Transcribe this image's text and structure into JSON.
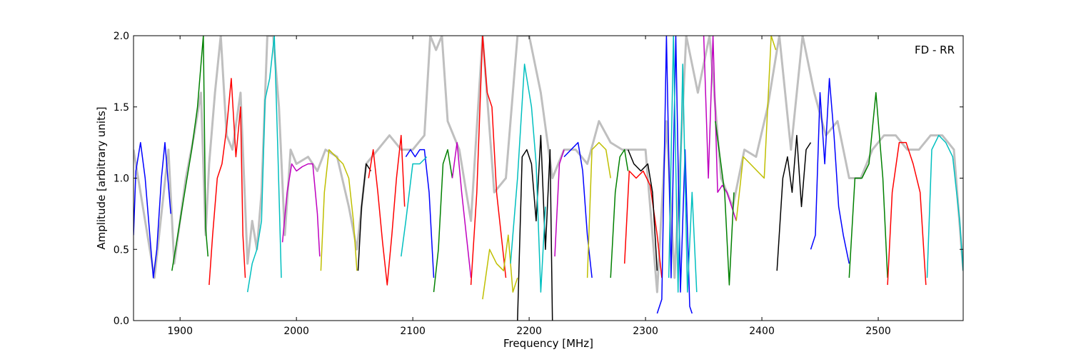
{
  "chart_data": {
    "type": "line",
    "title": "",
    "xlabel": "Frequency [MHz]",
    "ylabel": "Amplitude [arbitrary units]",
    "annotation": "FD - RR",
    "xlim": [
      1860,
      2573
    ],
    "ylim": [
      0.0,
      2.0
    ],
    "x_ticks": [
      1900,
      2000,
      2100,
      2200,
      2300,
      2400,
      2500
    ],
    "y_ticks": [
      0.0,
      0.5,
      1.0,
      1.5,
      2.0
    ],
    "y_tick_labels": [
      "0.0",
      "0.5",
      "1.0",
      "1.5",
      "2.0"
    ],
    "grid": false,
    "legend": "none",
    "background_series": {
      "color": "#bfbfbf",
      "x": [
        1860,
        1878,
        1890,
        1895,
        1905,
        1912,
        1918,
        1922,
        1925,
        1930,
        1935,
        1940,
        1945,
        1952,
        1958,
        1962,
        1966,
        1970,
        1975,
        1980,
        1985,
        1990,
        1995,
        2000,
        2010,
        2018,
        2025,
        2035,
        2045,
        2052,
        2060,
        2070,
        2080,
        2090,
        2100,
        2110,
        2115,
        2120,
        2125,
        2130,
        2140,
        2150,
        2160,
        2170,
        2180,
        2190,
        2200,
        2210,
        2220,
        2230,
        2240,
        2250,
        2260,
        2270,
        2280,
        2290,
        2300,
        2310,
        2318,
        2325,
        2335,
        2345,
        2355,
        2365,
        2375,
        2385,
        2395,
        2405,
        2415,
        2425,
        2435,
        2445,
        2455,
        2465,
        2475,
        2485,
        2495,
        2505,
        2515,
        2525,
        2535,
        2545,
        2555,
        2565,
        2573
      ],
      "y": [
        1.2,
        0.3,
        1.2,
        0.4,
        1.0,
        1.3,
        1.6,
        0.6,
        1.1,
        1.6,
        2.0,
        1.3,
        1.2,
        1.6,
        0.4,
        0.7,
        0.5,
        0.9,
        2.0,
        2.0,
        1.5,
        0.6,
        1.2,
        1.1,
        1.15,
        1.05,
        1.2,
        1.15,
        0.8,
        0.5,
        1.1,
        1.2,
        1.3,
        1.2,
        1.2,
        1.3,
        2.0,
        1.9,
        2.0,
        1.4,
        1.2,
        0.7,
        2.0,
        0.9,
        1.0,
        2.0,
        2.0,
        1.6,
        1.0,
        1.2,
        1.2,
        1.1,
        1.4,
        1.25,
        1.2,
        1.2,
        1.2,
        0.2,
        1.4,
        0.3,
        2.0,
        1.6,
        2.0,
        1.0,
        0.8,
        1.2,
        1.15,
        1.5,
        2.0,
        1.2,
        2.0,
        1.6,
        1.3,
        1.4,
        1.0,
        1.0,
        1.2,
        1.3,
        1.3,
        1.2,
        1.2,
        1.3,
        1.3,
        1.2,
        0.35
      ]
    },
    "series": [
      {
        "color": "#0000ff",
        "x": [
          1860,
          1862,
          1866,
          1870,
          1874,
          1877,
          1880,
          1884,
          1887,
          1890,
          1892
        ],
        "y": [
          0.6,
          1.05,
          1.25,
          1.0,
          0.6,
          0.3,
          0.5,
          1.0,
          1.25,
          0.95,
          0.75
        ]
      },
      {
        "color": "#008000",
        "x": [
          1893,
          1896,
          1900,
          1905,
          1910,
          1915,
          1918,
          1920,
          1922,
          1924
        ],
        "y": [
          0.35,
          0.5,
          0.7,
          0.95,
          1.2,
          1.5,
          1.8,
          2.0,
          0.65,
          0.45
        ]
      },
      {
        "color": "#ff0000",
        "x": [
          1925,
          1928,
          1932,
          1936,
          1940,
          1944,
          1948,
          1952,
          1954,
          1956
        ],
        "y": [
          0.25,
          0.6,
          1.0,
          1.1,
          1.35,
          1.7,
          1.15,
          1.5,
          0.6,
          0.3
        ]
      },
      {
        "color": "#00bfbf",
        "x": [
          1958,
          1962,
          1966,
          1970,
          1973,
          1977,
          1981,
          1984,
          1987
        ],
        "y": [
          0.2,
          0.4,
          0.5,
          0.7,
          1.55,
          1.7,
          2.0,
          1.2,
          0.3
        ]
      },
      {
        "color": "#bf00bf",
        "x": [
          1988,
          1992,
          1996,
          2000,
          2005,
          2010,
          2014,
          2018,
          2020
        ],
        "y": [
          0.55,
          0.9,
          1.1,
          1.05,
          1.08,
          1.1,
          1.1,
          0.75,
          0.45
        ]
      },
      {
        "color": "#bfbf00",
        "x": [
          2021,
          2024,
          2028,
          2034,
          2040,
          2045,
          2049,
          2052
        ],
        "y": [
          0.35,
          0.9,
          1.2,
          1.15,
          1.1,
          1.0,
          0.7,
          0.35
        ]
      },
      {
        "color": "#000000",
        "x": [
          2053,
          2056,
          2060,
          2064
        ],
        "y": [
          0.35,
          0.8,
          1.1,
          1.05
        ]
      },
      {
        "color": "#ff0000",
        "x": [
          2062,
          2066,
          2070,
          2074,
          2078,
          2082,
          2086,
          2090,
          2093
        ],
        "y": [
          1.0,
          1.2,
          0.9,
          0.55,
          0.25,
          0.6,
          1.0,
          1.3,
          0.8
        ]
      },
      {
        "color": "#0000ff",
        "x": [
          2094,
          2098,
          2102,
          2106,
          2110,
          2114,
          2118
        ],
        "y": [
          1.15,
          1.2,
          1.15,
          1.2,
          1.2,
          0.9,
          0.3
        ]
      },
      {
        "color": "#00bfbf",
        "x": [
          2090,
          2094,
          2100,
          2106,
          2112
        ],
        "y": [
          0.45,
          0.7,
          1.1,
          1.1,
          1.15
        ]
      },
      {
        "color": "#008000",
        "x": [
          2118,
          2122,
          2126,
          2130,
          2134
        ],
        "y": [
          0.2,
          0.5,
          1.1,
          1.2,
          1.0
        ]
      },
      {
        "color": "#bf00bf",
        "x": [
          2134,
          2138,
          2142,
          2146,
          2150
        ],
        "y": [
          1.0,
          1.25,
          0.9,
          0.6,
          0.3
        ]
      },
      {
        "color": "#ff0000",
        "x": [
          2150,
          2155,
          2160,
          2164,
          2168,
          2172,
          2176,
          2180
        ],
        "y": [
          0.25,
          0.9,
          2.0,
          1.6,
          1.5,
          0.9,
          0.6,
          0.3
        ]
      },
      {
        "color": "#bfbf00",
        "x": [
          2160,
          2166,
          2172,
          2178,
          2182,
          2186,
          2190
        ],
        "y": [
          0.15,
          0.5,
          0.4,
          0.35,
          0.6,
          0.2,
          0.3
        ]
      },
      {
        "color": "#000000",
        "x": [
          2190,
          2194,
          2198,
          2202,
          2206,
          2210,
          2214,
          2218,
          2220
        ],
        "y": [
          0.0,
          1.15,
          1.2,
          1.1,
          0.7,
          1.3,
          0.5,
          1.2,
          0.0
        ]
      },
      {
        "color": "#00bfbf",
        "x": [
          2184,
          2190,
          2196,
          2202,
          2206,
          2210,
          2214
        ],
        "y": [
          0.4,
          1.0,
          1.8,
          1.5,
          1.1,
          0.2,
          0.8
        ]
      },
      {
        "color": "#bf00bf",
        "x": [
          2222,
          2226,
          2230
        ],
        "y": [
          0.45,
          1.1,
          1.2
        ]
      },
      {
        "color": "#0000ff",
        "x": [
          2230,
          2236,
          2242,
          2246,
          2250,
          2254
        ],
        "y": [
          1.15,
          1.2,
          1.25,
          1.05,
          0.6,
          0.3
        ]
      },
      {
        "color": "#bfbf00",
        "x": [
          2250,
          2254,
          2260,
          2266,
          2270
        ],
        "y": [
          0.3,
          1.2,
          1.25,
          1.2,
          1.0
        ]
      },
      {
        "color": "#008000",
        "x": [
          2270,
          2274,
          2278,
          2282,
          2285
        ],
        "y": [
          0.3,
          0.9,
          1.15,
          1.2,
          1.05
        ]
      },
      {
        "color": "#ff0000",
        "x": [
          2282,
          2286,
          2292,
          2298,
          2304,
          2310,
          2314
        ],
        "y": [
          0.4,
          1.05,
          1.0,
          1.05,
          0.95,
          0.6,
          0.3
        ]
      },
      {
        "color": "#000000",
        "x": [
          2285,
          2290,
          2296,
          2302,
          2306,
          2310
        ],
        "y": [
          1.2,
          1.1,
          1.05,
          1.1,
          0.9,
          0.35
        ]
      },
      {
        "color": "#0000ff",
        "x": [
          2310,
          2314,
          2318,
          2322,
          2326,
          2330,
          2334,
          2338,
          2340
        ],
        "y": [
          0.05,
          0.15,
          2.0,
          0.3,
          2.0,
          0.2,
          1.2,
          0.1,
          0.05
        ]
      },
      {
        "color": "#00bfbf",
        "x": [
          2320,
          2324,
          2328,
          2332,
          2336,
          2340,
          2344
        ],
        "y": [
          0.3,
          2.0,
          0.2,
          1.8,
          0.2,
          0.9,
          0.2
        ]
      },
      {
        "color": "#bf00bf",
        "x": [
          2350,
          2354,
          2358,
          2362,
          2366,
          2370,
          2374,
          2378
        ],
        "y": [
          2.0,
          1.0,
          2.0,
          0.9,
          0.95,
          0.9,
          0.8,
          0.7
        ]
      },
      {
        "color": "#008000",
        "x": [
          2360,
          2364,
          2368,
          2372,
          2376
        ],
        "y": [
          1.4,
          1.15,
          0.9,
          0.25,
          0.9
        ]
      },
      {
        "color": "#bfbf00",
        "x": [
          2378,
          2384,
          2390,
          2396,
          2402,
          2408,
          2412
        ],
        "y": [
          0.7,
          1.15,
          1.1,
          1.05,
          1.0,
          2.0,
          1.9
        ]
      },
      {
        "color": "#000000",
        "x": [
          2413,
          2418,
          2422,
          2426,
          2430,
          2434,
          2438,
          2442
        ],
        "y": [
          0.35,
          1.0,
          1.15,
          0.9,
          1.3,
          0.8,
          1.2,
          1.25
        ]
      },
      {
        "color": "#0000ff",
        "x": [
          2442,
          2446,
          2450,
          2454,
          2458,
          2462,
          2466,
          2470,
          2475
        ],
        "y": [
          0.5,
          0.6,
          1.6,
          1.1,
          1.7,
          1.3,
          0.8,
          0.6,
          0.4
        ]
      },
      {
        "color": "#008000",
        "x": [
          2475,
          2480,
          2486,
          2492,
          2498,
          2504,
          2508
        ],
        "y": [
          0.3,
          1.0,
          1.0,
          1.1,
          1.6,
          1.0,
          0.3
        ]
      },
      {
        "color": "#ff0000",
        "x": [
          2508,
          2512,
          2518,
          2524,
          2530,
          2536,
          2541
        ],
        "y": [
          0.25,
          0.9,
          1.25,
          1.25,
          1.1,
          0.9,
          0.25
        ]
      },
      {
        "color": "#00bfbf",
        "x": [
          2542,
          2546,
          2552,
          2558,
          2564,
          2570,
          2573
        ],
        "y": [
          0.3,
          1.2,
          1.3,
          1.25,
          1.15,
          0.7,
          0.35
        ]
      }
    ]
  }
}
